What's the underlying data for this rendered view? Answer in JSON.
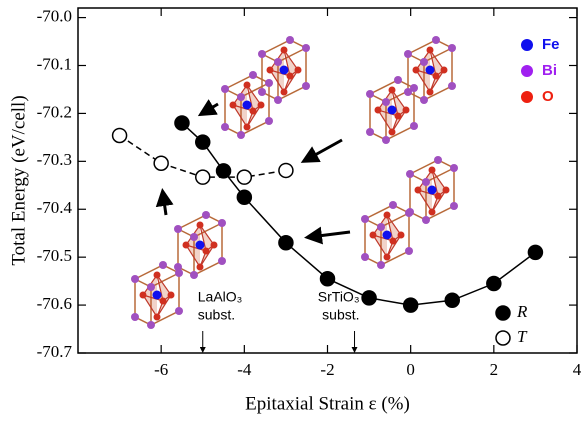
{
  "chart_data": {
    "type": "line",
    "xlabel": "Epitaxial Strain ε (%)",
    "ylabel": "Total Energy (eV/cell)",
    "xlim": [
      -8,
      4
    ],
    "ylim": [
      -70.7,
      -69.98
    ],
    "xticks": [
      -6,
      -4,
      -2,
      0,
      2,
      4
    ],
    "yticks": [
      {
        "value": -70,
        "label": "-70.0"
      },
      -70.1,
      -70.2,
      -70.3,
      -70.4,
      -70.5,
      -70.6,
      -70.7
    ],
    "legend": "lower right",
    "series": [
      {
        "name": "R",
        "color": "#000000",
        "marker": "filled",
        "dash": false,
        "x": [
          -5.5,
          -5,
          -4.5,
          -4,
          -3,
          -2,
          -1,
          0,
          1,
          2,
          3
        ],
        "values": [
          -70.22,
          -70.26,
          -70.32,
          -70.375,
          -70.47,
          -70.545,
          -70.585,
          -70.6,
          -70.59,
          -70.555,
          -70.49
        ]
      },
      {
        "name": "T",
        "color": "#000000",
        "marker": "open",
        "dash": true,
        "x": [
          -7,
          -6,
          -5,
          -4,
          -3
        ],
        "values": [
          -70.246,
          -70.304,
          -70.333,
          -70.333,
          -70.319
        ]
      }
    ],
    "atoms": [
      {
        "name": "Fe",
        "color": "#1010ee"
      },
      {
        "name": "Bi",
        "color": "#a020f0"
      },
      {
        "name": "O",
        "color": "#ee2010"
      }
    ],
    "annotations": [
      {
        "lines": [
          "LaAlO₃",
          "subst."
        ],
        "x": -5,
        "align": "left"
      },
      {
        "lines": [
          "SrTiO₃",
          "subst."
        ],
        "x": -1.35,
        "align": "right"
      }
    ]
  }
}
